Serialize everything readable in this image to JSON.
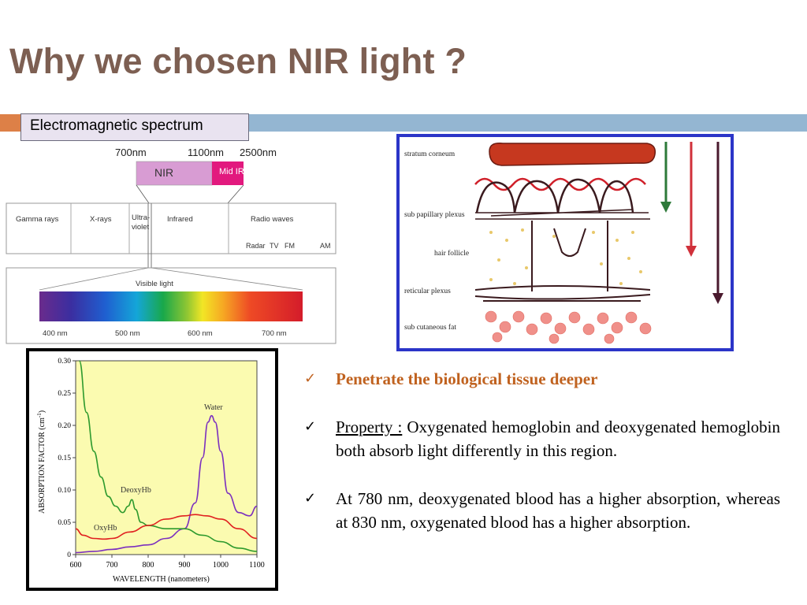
{
  "slide": {
    "title": "Why we chosen NIR light ?",
    "section_label": "Electromagnetic spectrum",
    "accent_colors": {
      "title": "#7d5f52",
      "orange": "#dd8047",
      "blue": "#94b6d2",
      "bullet_highlight": "#c0621f"
    }
  },
  "em_spectrum": {
    "top_ticks": [
      "700nm",
      "1100nm",
      "2500nm"
    ],
    "nir_label": "NIR",
    "midir_label": "Mid IR",
    "bands": [
      "Gamma rays",
      "X-rays",
      "Ultra-",
      "violet",
      "Infrared",
      "Radio waves"
    ],
    "radio_sub": [
      "Radar",
      "TV",
      "FM",
      "AM"
    ],
    "visible_label": "Visible light",
    "visible_ticks": [
      "400 nm",
      "500 nm",
      "600 nm",
      "700 nm"
    ]
  },
  "skin_diagram": {
    "layers": [
      "stratum corneum",
      "sub papillary plexus",
      "hair follicle",
      "reticular plexus",
      "sub cutaneous fat"
    ],
    "arrow_colors": [
      "#2e7a3a",
      "#d0303a",
      "#4a1a2e"
    ]
  },
  "chart_data": {
    "type": "line",
    "xlabel": "WAVELENGTH (nanometers)",
    "ylabel": "ABSORPTION FACTOR (cm",
    "ylabel_sup": "-1",
    "ylabel_end": ")",
    "xlim": [
      600,
      1100
    ],
    "ylim": [
      0,
      0.3
    ],
    "x_ticks": [
      "600",
      "700",
      "800",
      "900",
      "1000",
      "1100"
    ],
    "y_ticks": [
      "0",
      "0.05",
      "0.10",
      "0.15",
      "0.20",
      "0.25",
      "0.30"
    ],
    "series": [
      {
        "name": "Water",
        "color": "#7b2fbf",
        "x": [
          600,
          650,
          700,
          750,
          800,
          850,
          900,
          930,
          950,
          965,
          975,
          985,
          1000,
          1020,
          1050,
          1080,
          1100
        ],
        "y": [
          0.003,
          0.005,
          0.008,
          0.012,
          0.015,
          0.025,
          0.04,
          0.08,
          0.15,
          0.205,
          0.215,
          0.205,
          0.16,
          0.095,
          0.065,
          0.06,
          0.075
        ]
      },
      {
        "name": "DeoxyHb",
        "color": "#2e9a2e",
        "x": [
          610,
          630,
          650,
          670,
          690,
          710,
          730,
          745,
          755,
          765,
          780,
          800,
          850,
          900,
          950,
          1000,
          1050,
          1100
        ],
        "y": [
          0.3,
          0.22,
          0.16,
          0.12,
          0.09,
          0.075,
          0.065,
          0.075,
          0.085,
          0.07,
          0.05,
          0.045,
          0.04,
          0.04,
          0.03,
          0.02,
          0.01,
          0.005
        ]
      },
      {
        "name": "OxyHb",
        "color": "#e02020",
        "x": [
          600,
          620,
          650,
          680,
          700,
          750,
          800,
          850,
          900,
          930,
          960,
          1000,
          1050,
          1100
        ],
        "y": [
          0.04,
          0.03,
          0.025,
          0.024,
          0.025,
          0.035,
          0.045,
          0.055,
          0.06,
          0.062,
          0.06,
          0.055,
          0.04,
          0.025
        ]
      }
    ],
    "series_labels": [
      "Water",
      "DeoxyHb",
      "OxyHb"
    ]
  },
  "bullets": {
    "b1": "Penetrate the biological tissue deeper",
    "b2_prefix": "Property :",
    "b2_text": " Oxygenated hemoglobin and deoxygenated hemoglobin both absorb light differently in this region.",
    "b3": "At 780 nm, deoxygenated blood has a higher absorption, whereas at 830 nm, oxygenated blood has a higher absorption."
  }
}
